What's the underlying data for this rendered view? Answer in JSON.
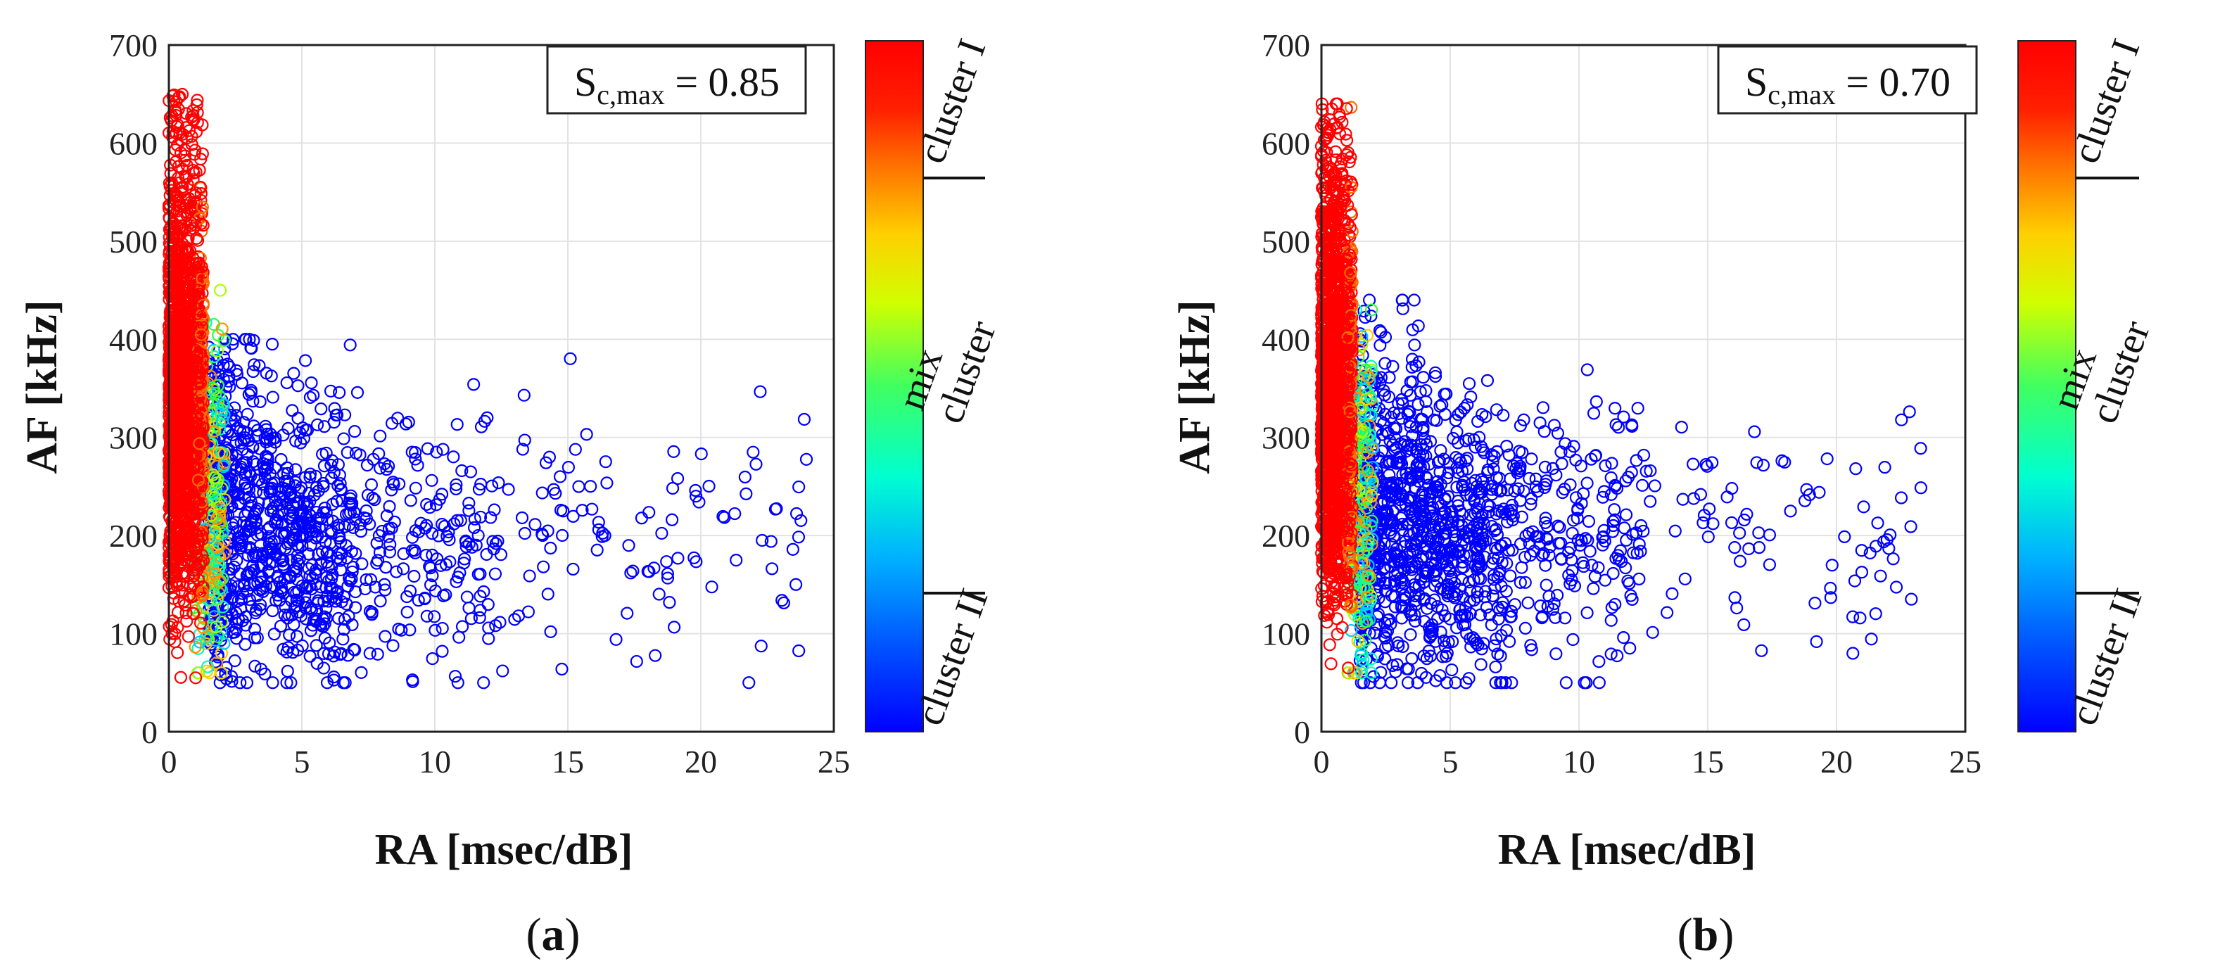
{
  "figure": {
    "panels": [
      {
        "label": "(a)",
        "label_open": "(",
        "label_letter": "a",
        "label_close": ")"
      },
      {
        "label": "(b)",
        "label_open": "(",
        "label_letter": "b",
        "label_close": ")"
      }
    ]
  },
  "chart_data": [
    {
      "type": "scatter",
      "panel": "a",
      "xlabel": "RA [msec/dB]",
      "ylabel": "AF [kHz]",
      "xlim": [
        0,
        25
      ],
      "ylim": [
        0,
        700
      ],
      "xticks": [
        0,
        5,
        10,
        15,
        20,
        25
      ],
      "yticks": [
        0,
        100,
        200,
        300,
        400,
        500,
        600,
        700
      ],
      "grid": true,
      "annotation": {
        "symbol": "S",
        "subscript": "c,max",
        "value": "0.85",
        "text": "S_c,max = 0.85",
        "position": "top-right"
      },
      "colorbar": {
        "colormap": "jet",
        "labels": [
          "cluster I",
          "mix cluster",
          "cluster II"
        ],
        "label_cluster_I": "cluster I",
        "label_mix_1": "mix",
        "label_mix_2": "cluster",
        "label_cluster_II": "cluster II",
        "division_marks": [
          0.81,
          0.2
        ]
      },
      "series": [
        {
          "name": "cluster I",
          "color": "#ff0000",
          "x_range": [
            0,
            1.3
          ],
          "y_range": [
            55,
            670
          ],
          "approx_count": 1700
        },
        {
          "name": "mix cluster",
          "color": "#ffcc00",
          "x_range": [
            0.9,
            2.1
          ],
          "y_range": [
            60,
            450
          ],
          "approx_count": 300
        },
        {
          "name": "cluster II",
          "color": "#0000ff",
          "x_range": [
            1.5,
            24
          ],
          "y_range": [
            50,
            400
          ],
          "approx_count": 1200
        }
      ]
    },
    {
      "type": "scatter",
      "panel": "b",
      "xlabel": "RA [msec/dB]",
      "ylabel": "AF [kHz]",
      "xlim": [
        0,
        25
      ],
      "ylim": [
        0,
        700
      ],
      "xticks": [
        0,
        5,
        10,
        15,
        20,
        25
      ],
      "yticks": [
        0,
        100,
        200,
        300,
        400,
        500,
        600,
        700
      ],
      "grid": true,
      "annotation": {
        "symbol": "S",
        "subscript": "c,max",
        "value": "0.70",
        "text": "S_c,max = 0.70",
        "position": "top-right"
      },
      "colorbar": {
        "colormap": "jet",
        "labels": [
          "cluster I",
          "mix cluster",
          "cluster II"
        ],
        "label_cluster_I": "cluster I",
        "label_mix_1": "mix",
        "label_mix_2": "cluster",
        "label_cluster_II": "cluster II",
        "division_marks": [
          0.81,
          0.2
        ]
      },
      "series": [
        {
          "name": "cluster I",
          "color": "#ff0000",
          "x_range": [
            0,
            1.2
          ],
          "y_range": [
            65,
            640
          ],
          "approx_count": 1700
        },
        {
          "name": "mix cluster",
          "color": "#ffcc00",
          "x_range": [
            1.0,
            2.0
          ],
          "y_range": [
            60,
            430
          ],
          "approx_count": 250
        },
        {
          "name": "cluster II",
          "color": "#0000ff",
          "x_range": [
            1.5,
            23.5
          ],
          "y_range": [
            50,
            440
          ],
          "approx_count": 1300
        }
      ]
    }
  ]
}
